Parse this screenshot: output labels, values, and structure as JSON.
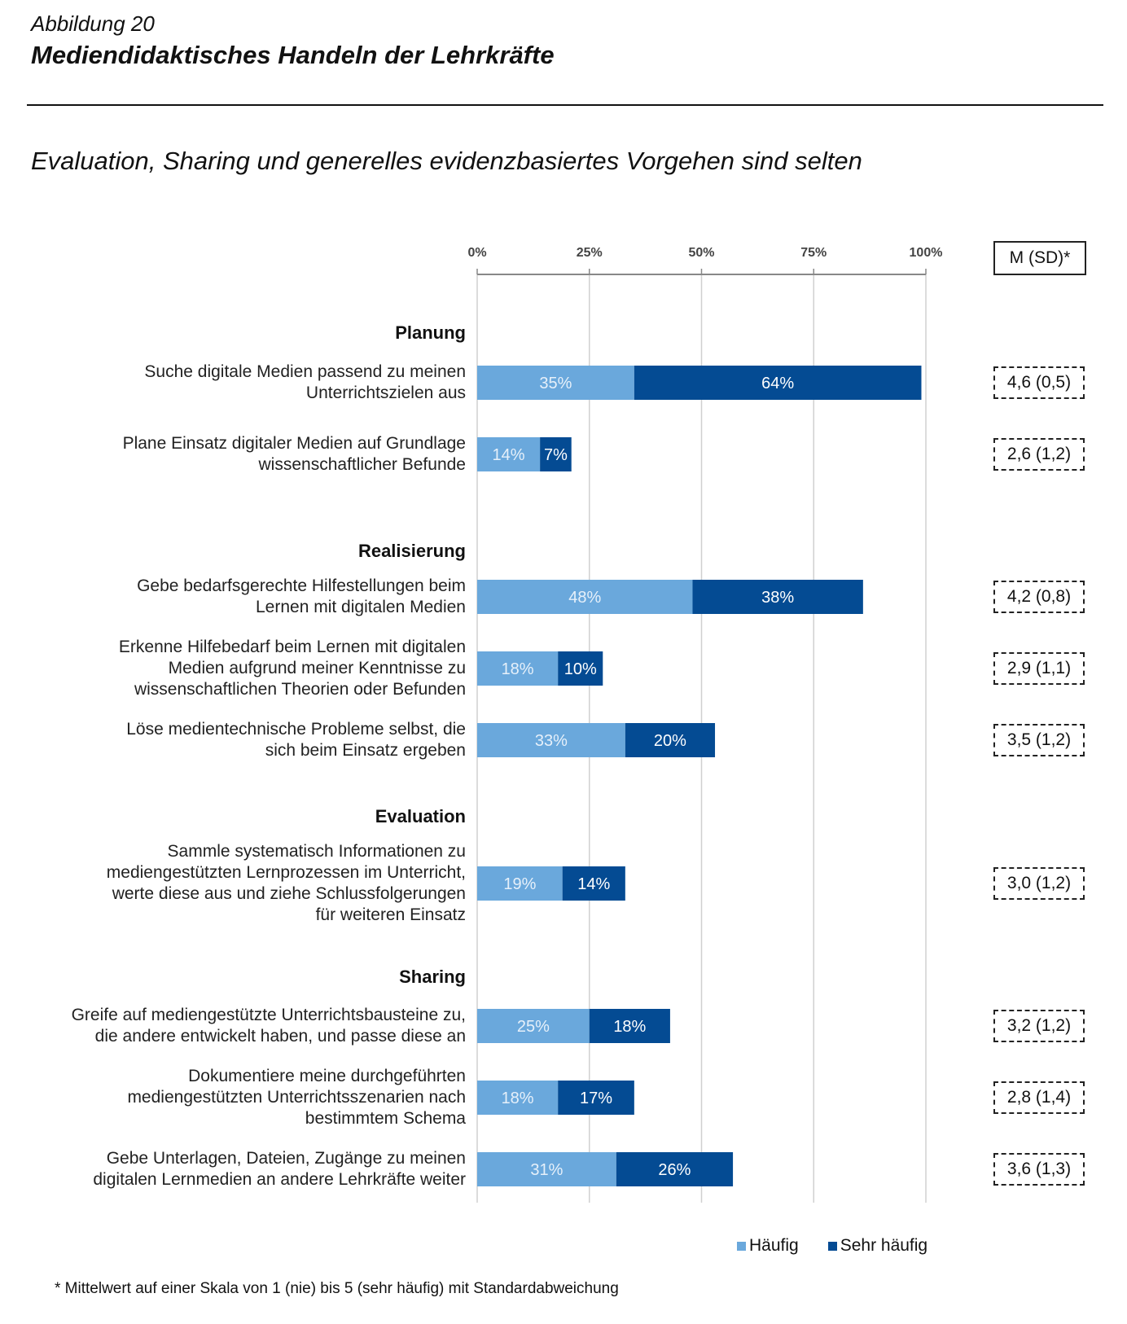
{
  "header": {
    "figure": "Abbildung 20",
    "title": "Mediendidaktisches Handeln der Lehrkräfte",
    "subtitle": "Evaluation, Sharing und generelles evidenzbasiertes Vorgehen sind selten"
  },
  "chart_data": {
    "type": "bar",
    "stacked": true,
    "orientation": "horizontal",
    "xlim": [
      0,
      100
    ],
    "ticks": [
      "0%",
      "25%",
      "50%",
      "75%",
      "100%"
    ],
    "colors": {
      "Häufig": "#6aa8dc",
      "Sehr häufig": "#044b93"
    },
    "legend": [
      "Häufig",
      "Sehr häufig"
    ],
    "legend_position": "bottom-right",
    "msd_header": "M (SD)*",
    "groups": [
      {
        "name": "Planung",
        "items": [
          {
            "label": "Suche digitale Medien passend zu meinen\nUnterrichtszielen aus",
            "haeufig": 35,
            "sehr": 64,
            "msd": "4,6 (0,5)"
          },
          {
            "label": "Plane Einsatz digitaler Medien auf Grundlage\nwissenschaftlicher Befunde",
            "haeufig": 14,
            "sehr": 7,
            "msd": "2,6 (1,2)"
          }
        ]
      },
      {
        "name": "Realisierung",
        "items": [
          {
            "label": "Gebe bedarfsgerechte Hilfestellungen beim\nLernen mit digitalen Medien",
            "haeufig": 48,
            "sehr": 38,
            "msd": "4,2 (0,8)"
          },
          {
            "label": "Erkenne Hilfebedarf beim Lernen mit digitalen\nMedien aufgrund meiner Kenntnisse zu\nwissenschaftlichen Theorien oder Befunden",
            "haeufig": 18,
            "sehr": 10,
            "msd": "2,9 (1,1)"
          },
          {
            "label": "Löse medientechnische Probleme selbst, die\nsich beim Einsatz ergeben",
            "haeufig": 33,
            "sehr": 20,
            "msd": "3,5 (1,2)"
          }
        ]
      },
      {
        "name": "Evaluation",
        "items": [
          {
            "label": "Sammle systematisch Informationen zu\nmediengestützten Lernprozessen im Unterricht,\nwerte diese aus und ziehe Schlussfolgerungen\nfür weiteren Einsatz",
            "haeufig": 19,
            "sehr": 14,
            "msd": "3,0 (1,2)"
          }
        ]
      },
      {
        "name": "Sharing",
        "items": [
          {
            "label": "Greife auf mediengestützte Unterrichtsbausteine zu,\ndie andere entwickelt haben, und passe diese an",
            "haeufig": 25,
            "sehr": 18,
            "msd": "3,2 (1,2)"
          },
          {
            "label": "Dokumentiere meine durchgeführten\nmediengestützten Unterrichtsszenarien nach\nbestimmtem Schema",
            "haeufig": 18,
            "sehr": 17,
            "msd": "2,8 (1,4)"
          },
          {
            "label": "Gebe Unterlagen, Dateien, Zugänge zu meinen\ndigitalen Lernmedien an andere Lehrkräfte weiter",
            "haeufig": 31,
            "sehr": 26,
            "msd": "3,6 (1,3)"
          }
        ]
      }
    ]
  },
  "footnote": "* Mittelwert auf einer Skala von 1 (nie) bis 5 (sehr häufig) mit Standardabweichung"
}
